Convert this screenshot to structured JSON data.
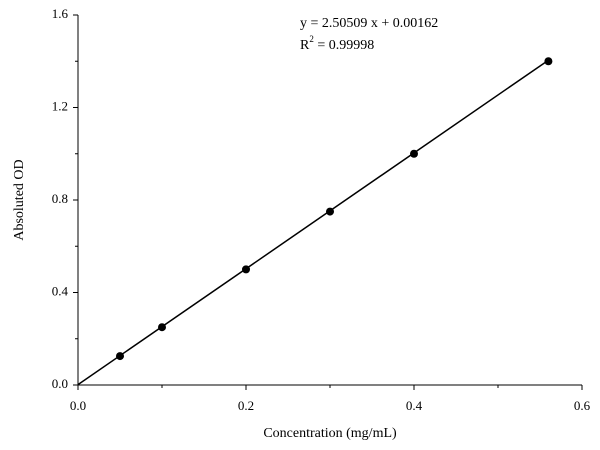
{
  "chart_data": {
    "type": "scatter",
    "xlabel": "Concentration (mg/mL)",
    "ylabel": "Absoluted OD",
    "annotations": {
      "equation": "y = 2.50509 x + 0.00162",
      "r2": {
        "base": "R",
        "sup": "2",
        "rest": " = 0.99998"
      }
    },
    "series": [
      {
        "x": [
          0.05,
          0.1,
          0.2,
          0.3,
          0.4,
          0.56
        ],
        "values": [
          0.125,
          0.25,
          0.5,
          0.75,
          1.0,
          1.4
        ],
        "color": "#000000"
      },
      {
        "type": "line",
        "x": [
          0,
          0.56
        ],
        "values": [
          0.0016,
          1.4045
        ],
        "color": "#000000"
      }
    ],
    "xlim": [
      0,
      0.6
    ],
    "ylim": [
      0,
      1.6
    ],
    "xticks": [
      {
        "value": 0,
        "label": "0.0"
      },
      0.2,
      0.4,
      0.6
    ],
    "yticks": [
      {
        "value": 0,
        "label": "0.0"
      },
      0.4,
      0.8,
      1.2,
      1.6
    ],
    "xminor": [
      0.1,
      0.3,
      0.5
    ],
    "yminor": [
      0.2,
      0.6,
      1.0,
      1.4
    ]
  }
}
